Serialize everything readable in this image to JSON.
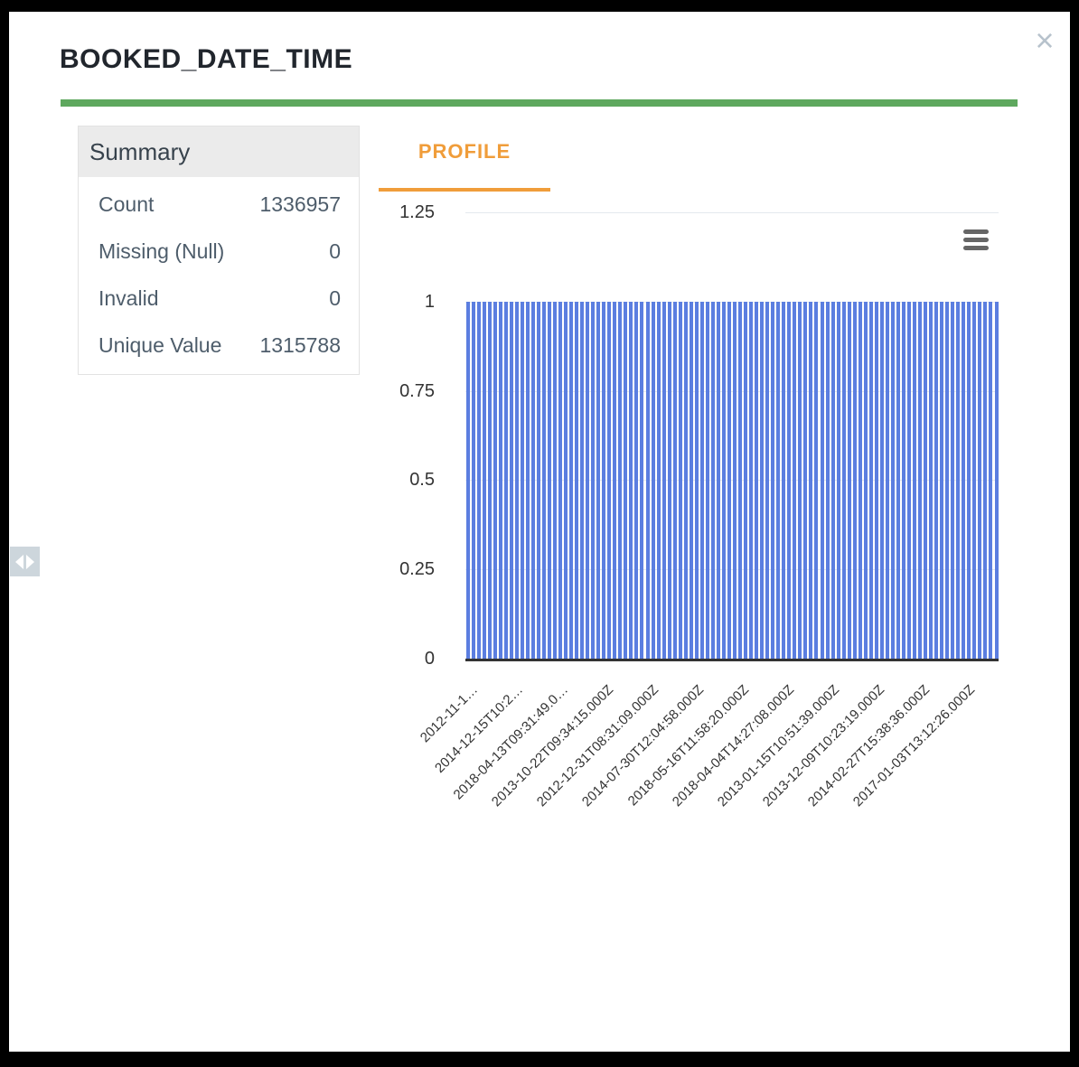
{
  "modal": {
    "title": "BOOKED_DATE_TIME",
    "close_icon": "×"
  },
  "summary": {
    "header": "Summary",
    "rows": [
      {
        "label": "Count",
        "value": "1336957"
      },
      {
        "label": "Missing (Null)",
        "value": "0"
      },
      {
        "label": "Invalid",
        "value": "0"
      },
      {
        "label": "Unique Value",
        "value": "1315788"
      }
    ]
  },
  "tabs": {
    "profile_label": "PROFILE"
  },
  "colors": {
    "accent_green": "#5ea85e",
    "accent_orange": "#f09d3a",
    "bar_blue": "#5b7ee0",
    "axis_text": "#333333",
    "gridline": "#e4e9ee"
  },
  "chart_data": {
    "type": "bar",
    "title": "",
    "bar_count": 98,
    "bar_value": 1,
    "ylim": [
      0,
      1.25
    ],
    "yticks": [
      "0",
      "0.25",
      "0.5",
      "0.75",
      "1",
      "1.25"
    ],
    "ytick_values": [
      0,
      0.25,
      0.5,
      0.75,
      1,
      1.25
    ],
    "x_tick_labels": [
      "2012-11-1…",
      "2014-12-15T10:2…",
      "2018-04-13T09:31:49.0…",
      "2013-10-22T09:34:15.000Z",
      "2012-12-31T08:31:09.000Z",
      "2014-07-30T12:04:58.000Z",
      "2018-05-16T11:58:20.000Z",
      "2018-04-04T14:27:08.000Z",
      "2013-01-15T10:51:39.000Z",
      "2013-12-09T10:23:19.000Z",
      "2014-02-27T15:38:36.000Z",
      "2017-01-03T13:12:26.000Z"
    ],
    "grid": true,
    "legend": false,
    "xlabel": "",
    "ylabel": ""
  }
}
